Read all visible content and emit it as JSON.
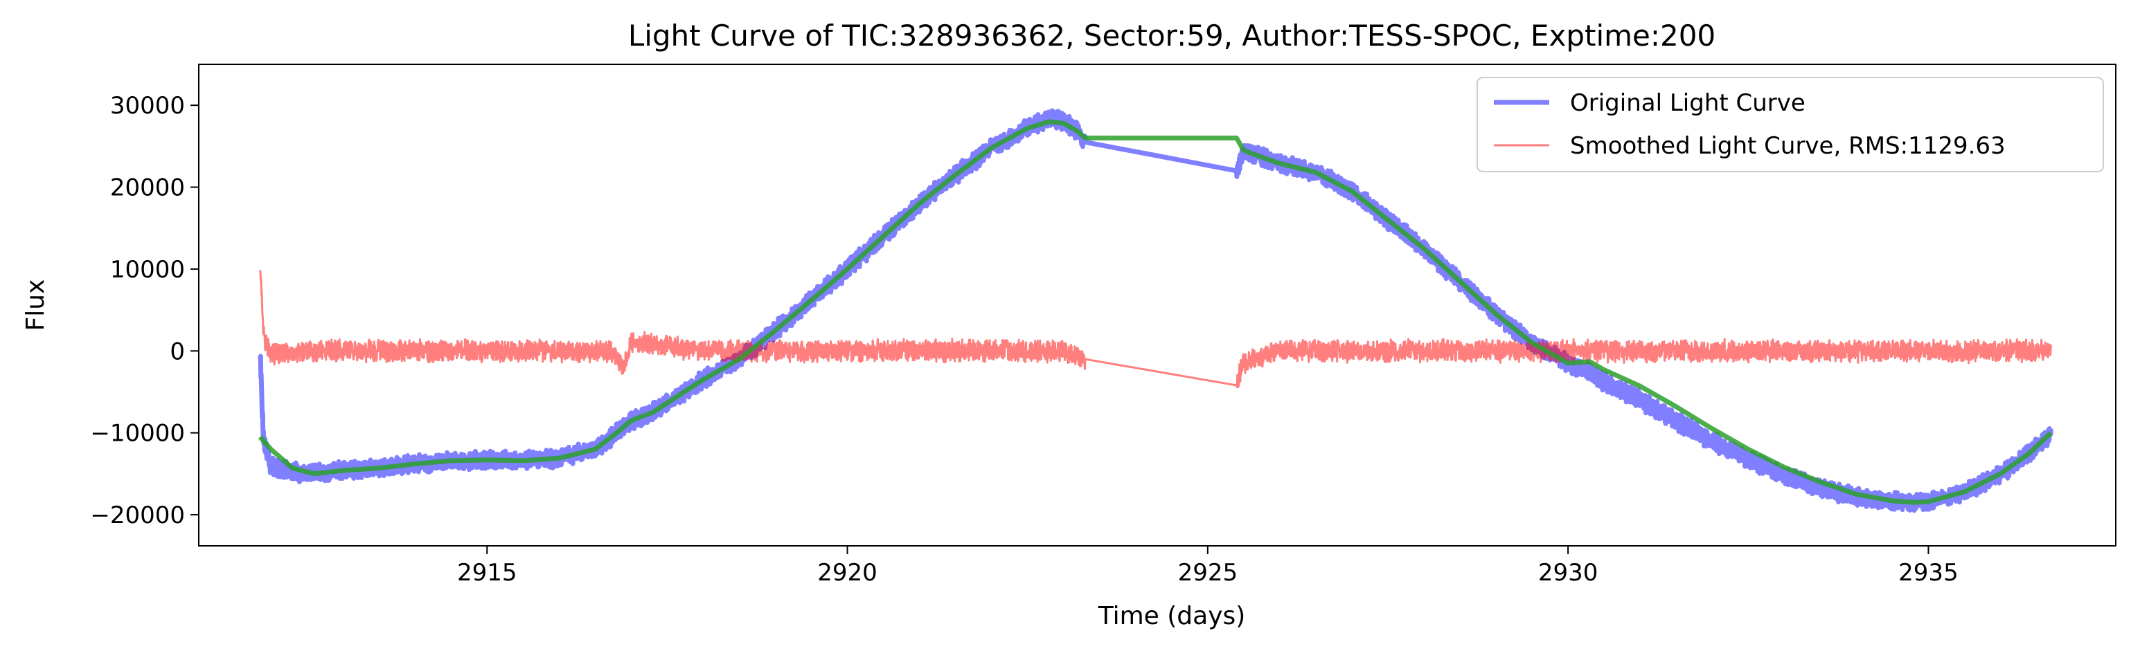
{
  "chart_data": {
    "type": "line",
    "title": "Light Curve of TIC:328936362, Sector:59, Author:TESS-SPOC, Exptime:200",
    "xlabel": "Time (days)",
    "ylabel": "Flux",
    "xlim": [
      2911.0,
      2937.6
    ],
    "ylim": [
      -23800,
      35000
    ],
    "xticks": [
      2915,
      2920,
      2925,
      2930,
      2935
    ],
    "yticks": [
      -20000,
      -10000,
      0,
      10000,
      20000,
      30000
    ],
    "xtick_labels": [
      "2915",
      "2920",
      "2925",
      "2930",
      "2935"
    ],
    "ytick_labels": [
      "−20000",
      "−10000",
      "0",
      "10000",
      "20000",
      "30000"
    ],
    "grid": false,
    "legend_location": "upper right",
    "gap": [
      2923.3,
      2925.4
    ],
    "series": [
      {
        "name": "Original Light Curve",
        "color": "#0000ff",
        "opacity": 0.5,
        "noise_amplitude": 1200,
        "x": [
          2911.85,
          2911.9,
          2912.0,
          2912.3,
          2912.6,
          2913.0,
          2913.5,
          2914.0,
          2914.5,
          2915.0,
          2915.5,
          2916.0,
          2916.5,
          2916.8,
          2917.0,
          2917.3,
          2917.7,
          2918.0,
          2918.5,
          2919.0,
          2919.5,
          2920.0,
          2920.5,
          2921.0,
          2921.5,
          2922.0,
          2922.5,
          2922.8,
          2923.0,
          2923.2,
          2923.3,
          2925.4,
          2925.5,
          2925.8,
          2926.0,
          2926.5,
          2927.0,
          2927.5,
          2928.0,
          2928.5,
          2929.0,
          2929.5,
          2930.0,
          2930.3,
          2930.5,
          2931.0,
          2931.5,
          2932.0,
          2932.5,
          2933.0,
          2933.5,
          2934.0,
          2934.5,
          2934.8,
          2935.0,
          2935.5,
          2936.0,
          2936.4,
          2936.7
        ],
        "y": [
          0,
          -11000,
          -14000,
          -14800,
          -15000,
          -14600,
          -14300,
          -13800,
          -13400,
          -13300,
          -13400,
          -13100,
          -12000,
          -10000,
          -8500,
          -7500,
          -5200,
          -3500,
          -1000,
          2500,
          6200,
          10000,
          14000,
          18000,
          21500,
          24800,
          27200,
          28500,
          28000,
          26800,
          25500,
          22000,
          24500,
          23500,
          22900,
          21800,
          19500,
          16000,
          12500,
          8500,
          4500,
          1000,
          -1500,
          -2500,
          -3800,
          -6000,
          -8500,
          -11000,
          -13200,
          -15200,
          -16700,
          -17800,
          -18400,
          -18500,
          -18400,
          -17200,
          -15000,
          -12500,
          -10000
        ]
      },
      {
        "name": "Smoothed Light Curve, RMS:1129.63",
        "color": "#ff0000",
        "opacity": 0.5,
        "noise_amplitude": 1500,
        "x": [
          2911.85,
          2911.9,
          2912.0,
          2912.3,
          2913.0,
          2914.0,
          2915.0,
          2916.0,
          2916.7,
          2916.9,
          2917.0,
          2918.0,
          2919.0,
          2920.0,
          2921.0,
          2922.0,
          2923.0,
          2923.3,
          2925.4,
          2925.5,
          2926.0,
          2927.0,
          2928.0,
          2929.0,
          2930.0,
          2930.5,
          2931.0,
          2932.0,
          2933.0,
          2934.0,
          2935.0,
          2936.0,
          2936.7
        ],
        "y": [
          10500,
          2000,
          -500,
          -200,
          0,
          0,
          0,
          0,
          0,
          -2000,
          1200,
          0,
          0,
          0,
          0,
          0,
          0,
          -1000,
          -4200,
          -1500,
          0,
          0,
          0,
          0,
          0,
          0,
          0,
          0,
          0,
          0,
          0,
          0,
          0
        ]
      },
      {
        "name": "",
        "color": "#2ca02c",
        "opacity": 0.85,
        "noise_amplitude": 0,
        "x": [
          2911.85,
          2912.0,
          2912.3,
          2912.6,
          2913.0,
          2913.5,
          2914.0,
          2914.5,
          2915.0,
          2915.5,
          2916.0,
          2916.5,
          2916.8,
          2917.0,
          2917.3,
          2917.7,
          2918.0,
          2918.5,
          2919.0,
          2919.5,
          2920.0,
          2920.5,
          2921.0,
          2921.5,
          2922.0,
          2922.5,
          2922.8,
          2923.0,
          2923.2,
          2923.3,
          2925.4,
          2925.5,
          2925.8,
          2926.0,
          2926.5,
          2927.0,
          2927.5,
          2928.0,
          2928.5,
          2929.0,
          2929.5,
          2930.0,
          2930.3,
          2930.5,
          2931.0,
          2931.5,
          2932.0,
          2932.5,
          2933.0,
          2933.5,
          2934.0,
          2934.5,
          2934.8,
          2935.0,
          2935.5,
          2936.0,
          2936.4,
          2936.7
        ],
        "y": [
          -10500,
          -12000,
          -14300,
          -15000,
          -14600,
          -14300,
          -13800,
          -13400,
          -13300,
          -13400,
          -13100,
          -12000,
          -10000,
          -8500,
          -7500,
          -5200,
          -3500,
          -1000,
          2500,
          6200,
          10000,
          14000,
          18000,
          21500,
          24800,
          27200,
          28000,
          27800,
          26800,
          26000,
          26000,
          24500,
          23500,
          22900,
          21800,
          19500,
          16000,
          12500,
          8500,
          4500,
          1000,
          -1500,
          -1300,
          -2300,
          -4300,
          -6800,
          -9500,
          -12000,
          -14200,
          -16000,
          -17500,
          -18300,
          -18500,
          -18400,
          -17200,
          -15000,
          -12500,
          -10000
        ]
      }
    ]
  }
}
